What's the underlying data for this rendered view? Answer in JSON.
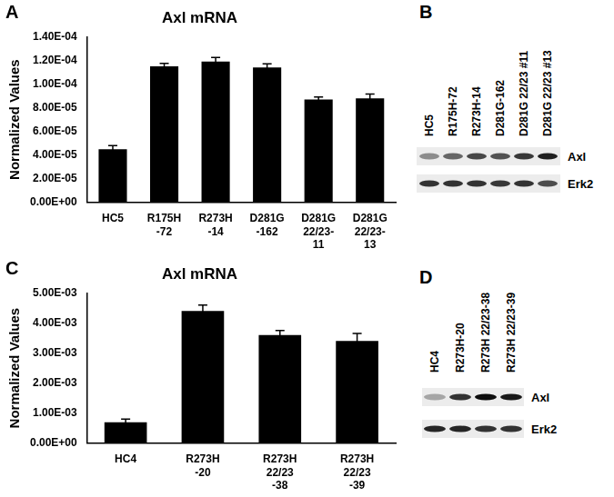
{
  "chart_data": [
    {
      "panel_label": "A",
      "type": "bar",
      "title": "Axl mRNA",
      "y_label": "Normalized Values",
      "categories": [
        "HC5",
        [
          "R175H",
          "-72"
        ],
        [
          "R273H",
          "-14"
        ],
        [
          "D281G",
          "-162"
        ],
        [
          "D281G",
          "22/23-",
          "11"
        ],
        [
          "D281G",
          "22/23-",
          "13"
        ]
      ],
      "values": [
        4.5e-05,
        0.000115,
        0.000119,
        0.000114,
        8.7e-05,
        8.8e-05
      ],
      "errors": [
        3e-06,
        2.5e-06,
        3.5e-06,
        3e-06,
        2e-06,
        3.5e-06
      ],
      "color": "#000000",
      "ylim": [
        0,
        0.00014
      ],
      "yticks": [
        {
          "value": 0,
          "label": "0.00E+00"
        },
        {
          "value": 2e-05,
          "label": "2.00E-05"
        },
        {
          "value": 4e-05,
          "label": "4.00E-05"
        },
        {
          "value": 6e-05,
          "label": "6.00E-05"
        },
        {
          "value": 8e-05,
          "label": "8.00E-05"
        },
        {
          "value": 0.0001,
          "label": "1.00E-04"
        },
        {
          "value": 0.00012,
          "label": "1.20E-04"
        },
        {
          "value": 0.00014,
          "label": "1.40E-04"
        }
      ],
      "grid": false
    },
    {
      "panel_label": "C",
      "type": "bar",
      "title": "Axl mRNA",
      "y_label": "Normalized Values",
      "categories": [
        "HC4",
        [
          "R273H",
          "-20"
        ],
        [
          "R273H",
          "22/23",
          "-38"
        ],
        [
          "R273H",
          "22/23",
          "-39"
        ]
      ],
      "values": [
        0.0007,
        0.0044,
        0.0036,
        0.0034
      ],
      "errors": [
        0.0001,
        0.0002,
        0.00015,
        0.00025
      ],
      "color": "#000000",
      "ylim": [
        0,
        0.005
      ],
      "yticks": [
        {
          "value": 0,
          "label": "0.00E+00"
        },
        {
          "value": 0.001,
          "label": "1.00E-03"
        },
        {
          "value": 0.002,
          "label": "2.00E-03"
        },
        {
          "value": 0.003,
          "label": "3.00E-03"
        },
        {
          "value": 0.004,
          "label": "4.00E-03"
        },
        {
          "value": 0.005,
          "label": "5.00E-03"
        }
      ],
      "grid": false
    }
  ],
  "blots": [
    {
      "panel_label": "B",
      "lanes": [
        "HC5",
        "R175H-72",
        "R273H-14",
        "D281G-162",
        "D281G 22/23 #11",
        "D281G 22/23 #13"
      ],
      "bands": [
        {
          "name": "Axl",
          "intensity": [
            0.45,
            0.6,
            0.72,
            0.68,
            0.78,
            0.88
          ]
        },
        {
          "name": "Erk2",
          "intensity": [
            0.8,
            0.8,
            0.8,
            0.78,
            0.8,
            0.7
          ]
        }
      ]
    },
    {
      "panel_label": "D",
      "lanes": [
        "HC4",
        "R273H-20",
        "R273H 22/23-38",
        "R273H 22/23-39"
      ],
      "bands": [
        {
          "name": "Axl",
          "intensity": [
            0.35,
            0.8,
            0.95,
            0.9
          ]
        },
        {
          "name": "Erk2",
          "intensity": [
            0.85,
            0.85,
            0.8,
            0.8
          ]
        }
      ]
    }
  ]
}
